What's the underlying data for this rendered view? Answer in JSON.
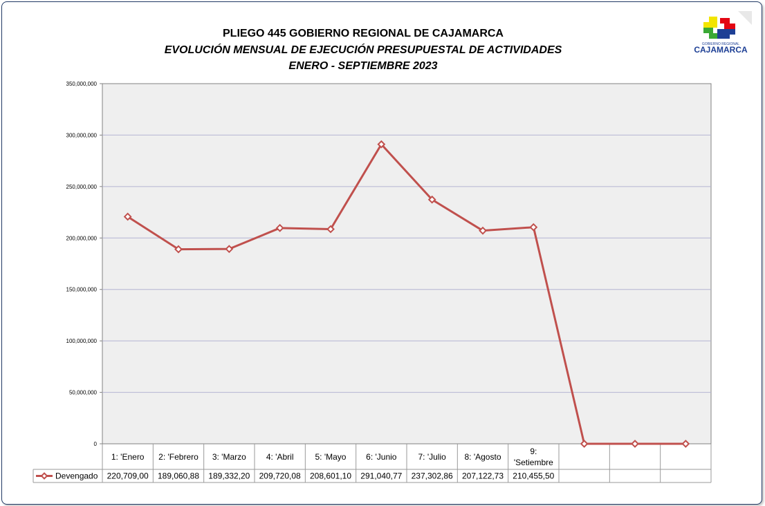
{
  "header": {
    "title": "PLIEGO 445 GOBIERNO REGIONAL DE CAJAMARCA",
    "subtitle": "EVOLUCIÓN MENSUAL DE EJECUCIÓN PRESUPUESTAL DE ACTIVIDADES",
    "period": "ENERO - SEPTIEMBRE 2023"
  },
  "logo": {
    "small_text": "GOBIERNO REGIONAL",
    "big_text": "CAJAMARCA",
    "colors": [
      "#f2e500",
      "#3aa935",
      "#e30613",
      "#1d3f95"
    ]
  },
  "chart_data": {
    "type": "line",
    "title": "EVOLUCIÓN MENSUAL DE EJECUCIÓN PRESUPUESTAL DE ACTIVIDADES",
    "categories": [
      "1: 'Enero",
      "2: 'Febrero",
      "3: 'Marzo",
      "4: 'Abril",
      "5: 'Mayo",
      "6: 'Junio",
      "7: 'Julio",
      "8: 'Agosto",
      "9: 'Setiembre",
      "",
      "",
      ""
    ],
    "series": [
      {
        "name": "Devengado",
        "color": "#c0504d",
        "values": [
          220709000,
          189060880,
          189332200,
          209720080,
          208601100,
          291040770,
          237302860,
          207122730,
          210455500,
          0,
          0,
          0
        ],
        "table_labels": [
          "220,709,00",
          "189,060,88",
          "189,332,20",
          "209,720,08",
          "208,601,10",
          "291,040,77",
          "237,302,86",
          "207,122,73",
          "210,455,50",
          "",
          "",
          ""
        ]
      }
    ],
    "yticks": [
      "0",
      "50,000,000",
      "100,000,000",
      "150,000,000",
      "200,000,000",
      "250,000,000",
      "300,000,000",
      "350,000,000"
    ],
    "ylim": [
      0,
      350000000
    ],
    "grid": true,
    "legend": "data-table",
    "colors": {
      "plot_bg": "#efefef",
      "grid": "#b4b4d2"
    }
  }
}
